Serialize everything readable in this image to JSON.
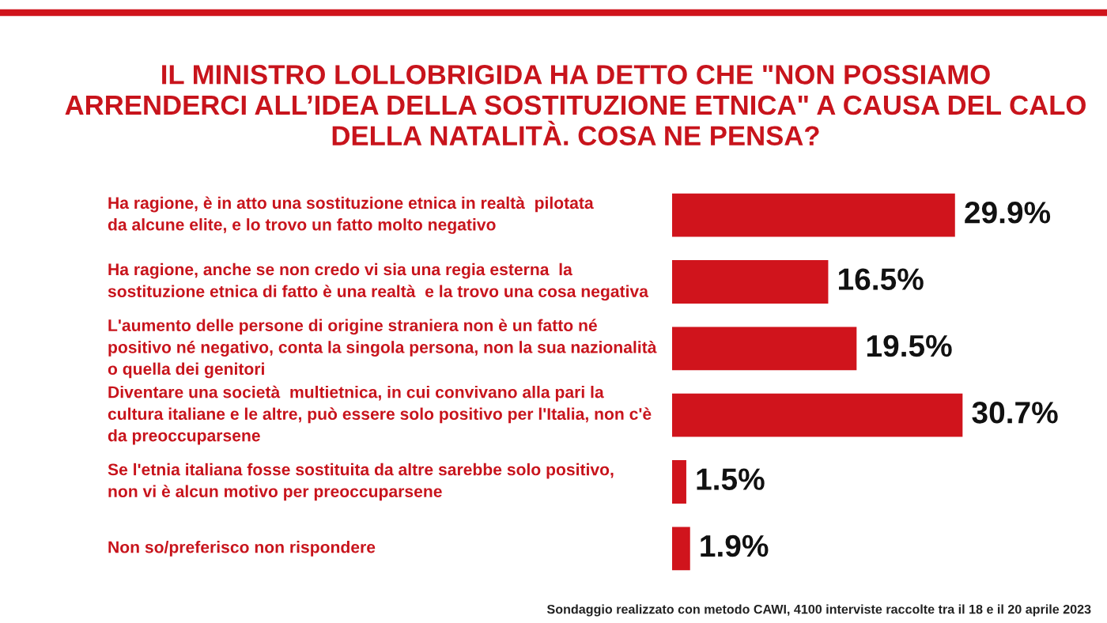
{
  "chart_data": {
    "type": "bar",
    "orientation": "horizontal",
    "title": "IL MINISTRO LOLLOBRIGIDA HA DETTO CHE \"NON POSSIAMO\nARRENDERCI ALL’IDEA DELLA SOSTITUZIONE ETNICA\" A CAUSA DEL CALO\nDELLA NATALITÀ. COSA NE PENSA?",
    "categories": [
      "Ha ragione, è in atto una sostituzione etnica in realtà  pilotata\nda alcune elite, e lo trovo un fatto molto negativo",
      "Ha ragione, anche se non credo vi sia una regia esterna  la\nsostituzione etnica di fatto è una realtà  e la trovo una cosa negativa",
      "L'aumento delle persone di origine straniera non è un fatto né\npositivo né negativo, conta la singola persona, non la sua nazionalità\no quella dei genitori",
      "Diventare una società  multietnica, in cui convivano alla pari la\ncultura italiane e le altre, può essere solo positivo per l'Italia, non c'è\nda preoccuparsene",
      "Se l'etnia italiana fosse sostituita da altre sarebbe solo positivo,\nnon vi è alcun motivo per preoccuparsene",
      "Non so/preferisco non rispondere"
    ],
    "values": [
      29.9,
      16.5,
      19.5,
      30.7,
      1.5,
      1.9
    ],
    "value_labels": [
      "29.9%",
      "16.5%",
      "19.5%",
      "30.7%",
      "1.5%",
      "1.9%"
    ],
    "color": "#d0141c",
    "annotations": [
      "Sondaggio realizzato con metodo CAWI, 4100 interviste raccolte tra il 18 e il 20 aprile 2023"
    ]
  }
}
